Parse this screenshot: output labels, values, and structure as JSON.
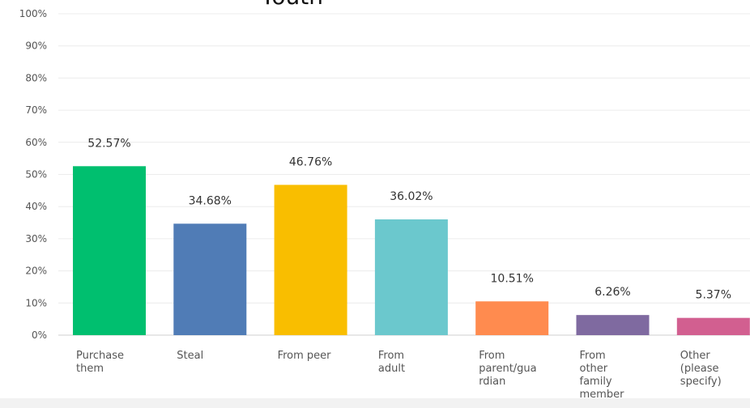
{
  "chart_data": {
    "type": "bar",
    "title": "Youth",
    "categories": [
      [
        "Purchase",
        "them"
      ],
      [
        "Steal"
      ],
      [
        "From peer"
      ],
      [
        "From",
        "adult"
      ],
      [
        "From",
        "parent/gua",
        "rdian"
      ],
      [
        "From",
        "other",
        "family",
        "member"
      ],
      [
        "Other",
        "(please",
        "specify)"
      ]
    ],
    "values": [
      52.57,
      34.68,
      46.76,
      36.02,
      10.51,
      6.26,
      5.37
    ],
    "value_labels": [
      "52.57%",
      "34.68%",
      "46.76%",
      "36.02%",
      "10.51%",
      "6.26%",
      "5.37%"
    ],
    "colors": [
      "#00bf6f",
      "#507cb6",
      "#f9be00",
      "#6bc8cd",
      "#ff8b4f",
      "#7f6aa0",
      "#d25f90"
    ],
    "ylim": [
      0,
      100
    ],
    "yticks": [
      "0%",
      "10%",
      "20%",
      "30%",
      "40%",
      "50%",
      "60%",
      "70%",
      "80%",
      "90%",
      "100%"
    ],
    "grid": true,
    "xlabel": "",
    "ylabel": ""
  }
}
